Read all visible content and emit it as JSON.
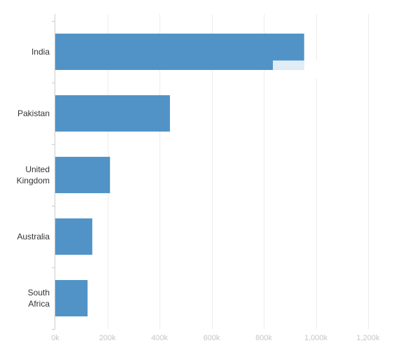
{
  "chart_data": {
    "type": "bar",
    "orientation": "horizontal",
    "categories": [
      [
        "India"
      ],
      [
        "Pakistan"
      ],
      [
        "United",
        "Kingdom"
      ],
      [
        "Australia"
      ],
      [
        "South",
        "Africa"
      ]
    ],
    "values": [
      955000,
      440000,
      210000,
      142000,
      124000
    ],
    "xlim": [
      0,
      1200000
    ],
    "x_ticks": [
      0,
      200000,
      400000,
      600000,
      800000,
      1000000,
      1200000
    ],
    "x_tick_labels": [
      "0k",
      "200k",
      "400k",
      "600k",
      "800k",
      "1,000k",
      "1,200k"
    ],
    "grid": true,
    "bar_color": "#5193c6",
    "grid_color": "#ececec",
    "axis_color": "#cccccc",
    "highlight_color": "#e1edf6",
    "highlight": {
      "category_index": 0,
      "x_start": 835000,
      "x_end": 955000
    }
  }
}
